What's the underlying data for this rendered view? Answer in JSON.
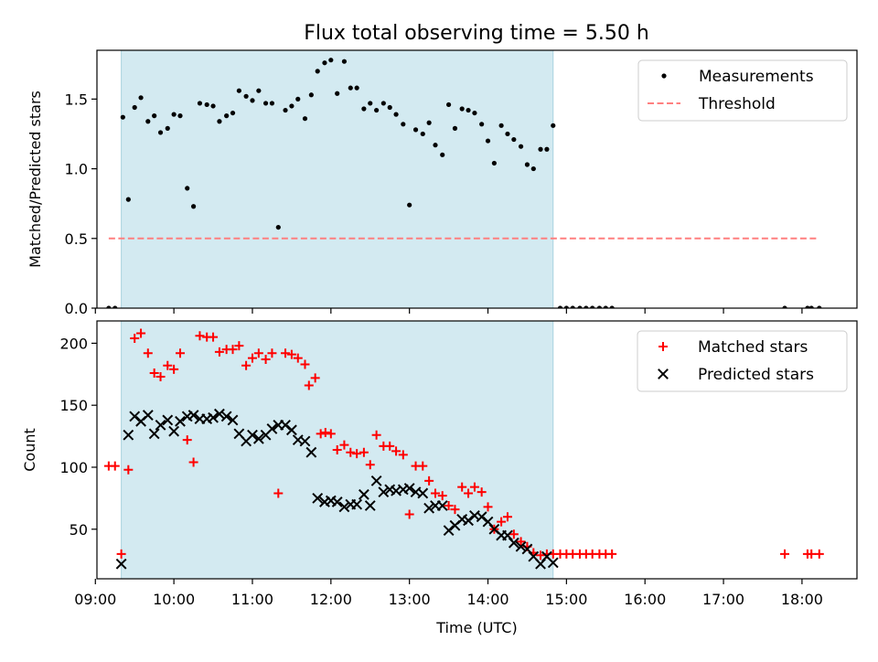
{
  "figure": {
    "title": "Flux total observing time = 5.50 h"
  },
  "chart_data": [
    {
      "type": "scatter",
      "ylabel": "Matched/Predicted stars",
      "xlabel": "",
      "xlim": [
        9.02,
        18.7
      ],
      "ylim": [
        0.0,
        1.85
      ],
      "yticks": [
        0.0,
        0.5,
        1.0,
        1.5
      ],
      "ytick_labels": [
        "0.0",
        "0.5",
        "1.0",
        "1.5"
      ],
      "xticks": [
        9,
        10,
        11,
        12,
        13,
        14,
        15,
        16,
        17,
        18
      ],
      "shaded_span": [
        9.33,
        14.83
      ],
      "shade_color": "#d3eaf1",
      "legend_location": "upper right",
      "grid": false,
      "series": [
        {
          "name": "Measurements",
          "marker": "dot",
          "color": "#000000",
          "points": [
            [
              9.17,
              0
            ],
            [
              9.25,
              0
            ],
            [
              9.35,
              1.37
            ],
            [
              9.42,
              0.78
            ],
            [
              9.5,
              1.44
            ],
            [
              9.58,
              1.51
            ],
            [
              9.67,
              1.34
            ],
            [
              9.75,
              1.38
            ],
            [
              9.83,
              1.26
            ],
            [
              9.92,
              1.29
            ],
            [
              10.0,
              1.39
            ],
            [
              10.08,
              1.38
            ],
            [
              10.17,
              0.86
            ],
            [
              10.25,
              0.73
            ],
            [
              10.33,
              1.47
            ],
            [
              10.42,
              1.46
            ],
            [
              10.5,
              1.45
            ],
            [
              10.58,
              1.34
            ],
            [
              10.67,
              1.38
            ],
            [
              10.75,
              1.4
            ],
            [
              10.83,
              1.56
            ],
            [
              10.92,
              1.52
            ],
            [
              11.0,
              1.49
            ],
            [
              11.08,
              1.56
            ],
            [
              11.17,
              1.47
            ],
            [
              11.25,
              1.47
            ],
            [
              11.33,
              0.58
            ],
            [
              11.42,
              1.42
            ],
            [
              11.5,
              1.45
            ],
            [
              11.58,
              1.5
            ],
            [
              11.67,
              1.36
            ],
            [
              11.75,
              1.53
            ],
            [
              11.83,
              1.7
            ],
            [
              11.92,
              1.76
            ],
            [
              12.0,
              1.78
            ],
            [
              12.08,
              1.54
            ],
            [
              12.17,
              1.77
            ],
            [
              12.25,
              1.58
            ],
            [
              12.33,
              1.58
            ],
            [
              12.42,
              1.43
            ],
            [
              12.5,
              1.47
            ],
            [
              12.58,
              1.42
            ],
            [
              12.67,
              1.47
            ],
            [
              12.75,
              1.44
            ],
            [
              12.83,
              1.39
            ],
            [
              12.92,
              1.32
            ],
            [
              13.0,
              0.74
            ],
            [
              13.08,
              1.28
            ],
            [
              13.17,
              1.25
            ],
            [
              13.25,
              1.33
            ],
            [
              13.33,
              1.17
            ],
            [
              13.42,
              1.1
            ],
            [
              13.5,
              1.46
            ],
            [
              13.58,
              1.29
            ],
            [
              13.67,
              1.43
            ],
            [
              13.75,
              1.42
            ],
            [
              13.83,
              1.4
            ],
            [
              13.92,
              1.32
            ],
            [
              14.0,
              1.2
            ],
            [
              14.08,
              1.04
            ],
            [
              14.17,
              1.31
            ],
            [
              14.25,
              1.25
            ],
            [
              14.33,
              1.21
            ],
            [
              14.42,
              1.16
            ],
            [
              14.5,
              1.03
            ],
            [
              14.58,
              1.0
            ],
            [
              14.67,
              1.14
            ],
            [
              14.75,
              1.14
            ],
            [
              14.83,
              1.31
            ],
            [
              14.92,
              0
            ],
            [
              15.0,
              0
            ],
            [
              15.08,
              0
            ],
            [
              15.17,
              0
            ],
            [
              15.25,
              0
            ],
            [
              15.33,
              0
            ],
            [
              15.42,
              0
            ],
            [
              15.5,
              0
            ],
            [
              15.58,
              0
            ],
            [
              17.78,
              0
            ],
            [
              18.07,
              0
            ],
            [
              18.12,
              0
            ],
            [
              18.22,
              0
            ]
          ]
        },
        {
          "name": "Threshold",
          "marker": "dashed-line",
          "color": "#ff7f7f",
          "points": [
            [
              9.17,
              0.5
            ],
            [
              18.22,
              0.5
            ]
          ]
        }
      ]
    },
    {
      "type": "scatter",
      "ylabel": "Count",
      "xlabel": "Time (UTC)",
      "xlim": [
        9.02,
        18.7
      ],
      "ylim": [
        10,
        218
      ],
      "yticks": [
        50,
        100,
        150,
        200
      ],
      "ytick_labels": [
        "50",
        "100",
        "150",
        "200"
      ],
      "xticks": [
        9,
        10,
        11,
        12,
        13,
        14,
        15,
        16,
        17,
        18
      ],
      "xtick_labels": [
        "09:00",
        "10:00",
        "11:00",
        "12:00",
        "13:00",
        "14:00",
        "15:00",
        "16:00",
        "17:00",
        "18:00"
      ],
      "shaded_span": [
        9.33,
        14.83
      ],
      "shade_color": "#d3eaf1",
      "legend_location": "upper right",
      "grid": false,
      "series": [
        {
          "name": "Matched stars",
          "marker": "plus",
          "color": "#ff0000",
          "points": [
            [
              9.17,
              101
            ],
            [
              9.25,
              101
            ],
            [
              9.33,
              30
            ],
            [
              9.42,
              98
            ],
            [
              9.5,
              204
            ],
            [
              9.58,
              208
            ],
            [
              9.67,
              192
            ],
            [
              9.75,
              176
            ],
            [
              9.83,
              173
            ],
            [
              9.92,
              182
            ],
            [
              10.0,
              179
            ],
            [
              10.08,
              192
            ],
            [
              10.17,
              122
            ],
            [
              10.25,
              104
            ],
            [
              10.33,
              206
            ],
            [
              10.42,
              205
            ],
            [
              10.5,
              205
            ],
            [
              10.58,
              193
            ],
            [
              10.67,
              195
            ],
            [
              10.75,
              195
            ],
            [
              10.83,
              198
            ],
            [
              10.92,
              182
            ],
            [
              11.0,
              188
            ],
            [
              11.08,
              192
            ],
            [
              11.17,
              187
            ],
            [
              11.25,
              192
            ],
            [
              11.33,
              79
            ],
            [
              11.42,
              192
            ],
            [
              11.5,
              191
            ],
            [
              11.58,
              188
            ],
            [
              11.67,
              183
            ],
            [
              11.72,
              166
            ],
            [
              11.8,
              172
            ],
            [
              11.87,
              127
            ],
            [
              11.93,
              128
            ],
            [
              12.0,
              127
            ],
            [
              12.08,
              114
            ],
            [
              12.17,
              118
            ],
            [
              12.25,
              112
            ],
            [
              12.33,
              111
            ],
            [
              12.42,
              112
            ],
            [
              12.5,
              102
            ],
            [
              12.58,
              126
            ],
            [
              12.67,
              117
            ],
            [
              12.75,
              117
            ],
            [
              12.83,
              113
            ],
            [
              12.92,
              110
            ],
            [
              13.0,
              62
            ],
            [
              13.08,
              101
            ],
            [
              13.17,
              101
            ],
            [
              13.25,
              89
            ],
            [
              13.33,
              79
            ],
            [
              13.42,
              77
            ],
            [
              13.5,
              69
            ],
            [
              13.58,
              66
            ],
            [
              13.67,
              84
            ],
            [
              13.75,
              79
            ],
            [
              13.83,
              84
            ],
            [
              13.92,
              80
            ],
            [
              14.0,
              68
            ],
            [
              14.08,
              50
            ],
            [
              14.17,
              56
            ],
            [
              14.25,
              60
            ],
            [
              14.33,
              46
            ],
            [
              14.42,
              40
            ],
            [
              14.5,
              36
            ],
            [
              14.58,
              31
            ],
            [
              14.67,
              29
            ],
            [
              14.75,
              30
            ],
            [
              14.83,
              30
            ],
            [
              14.92,
              30
            ],
            [
              15.0,
              30
            ],
            [
              15.08,
              30
            ],
            [
              15.17,
              30
            ],
            [
              15.25,
              30
            ],
            [
              15.33,
              30
            ],
            [
              15.42,
              30
            ],
            [
              15.5,
              30
            ],
            [
              15.58,
              30
            ],
            [
              17.78,
              30
            ],
            [
              18.07,
              30
            ],
            [
              18.12,
              30
            ],
            [
              18.22,
              30
            ]
          ]
        },
        {
          "name": "Predicted stars",
          "marker": "x",
          "color": "#000000",
          "points": [
            [
              9.33,
              22
            ],
            [
              9.42,
              126
            ],
            [
              9.5,
              141
            ],
            [
              9.58,
              137
            ],
            [
              9.67,
              142
            ],
            [
              9.75,
              127
            ],
            [
              9.83,
              134
            ],
            [
              9.92,
              138
            ],
            [
              10.0,
              129
            ],
            [
              10.08,
              137
            ],
            [
              10.17,
              141
            ],
            [
              10.25,
              142
            ],
            [
              10.33,
              139
            ],
            [
              10.42,
              139
            ],
            [
              10.5,
              140
            ],
            [
              10.58,
              143
            ],
            [
              10.67,
              141
            ],
            [
              10.75,
              138
            ],
            [
              10.83,
              127
            ],
            [
              10.92,
              121
            ],
            [
              11.0,
              126
            ],
            [
              11.08,
              123
            ],
            [
              11.17,
              126
            ],
            [
              11.25,
              131
            ],
            [
              11.33,
              134
            ],
            [
              11.42,
              134
            ],
            [
              11.5,
              130
            ],
            [
              11.58,
              122
            ],
            [
              11.67,
              121
            ],
            [
              11.75,
              112
            ],
            [
              11.83,
              75
            ],
            [
              11.92,
              72
            ],
            [
              12.0,
              73
            ],
            [
              12.08,
              72
            ],
            [
              12.17,
              68
            ],
            [
              12.25,
              70
            ],
            [
              12.33,
              70
            ],
            [
              12.42,
              78
            ],
            [
              12.5,
              69
            ],
            [
              12.58,
              89
            ],
            [
              12.67,
              80
            ],
            [
              12.75,
              82
            ],
            [
              12.83,
              81
            ],
            [
              12.92,
              82
            ],
            [
              13.0,
              83
            ],
            [
              13.08,
              80
            ],
            [
              13.17,
              79
            ],
            [
              13.25,
              67
            ],
            [
              13.33,
              69
            ],
            [
              13.42,
              69
            ],
            [
              13.5,
              49
            ],
            [
              13.58,
              53
            ],
            [
              13.67,
              58
            ],
            [
              13.75,
              57
            ],
            [
              13.83,
              61
            ],
            [
              13.92,
              60
            ],
            [
              14.0,
              56
            ],
            [
              14.08,
              50
            ],
            [
              14.17,
              45
            ],
            [
              14.25,
              45
            ],
            [
              14.33,
              39
            ],
            [
              14.42,
              36
            ],
            [
              14.5,
              34
            ],
            [
              14.58,
              28
            ],
            [
              14.67,
              22
            ],
            [
              14.75,
              28
            ],
            [
              14.83,
              23
            ]
          ]
        }
      ]
    }
  ]
}
